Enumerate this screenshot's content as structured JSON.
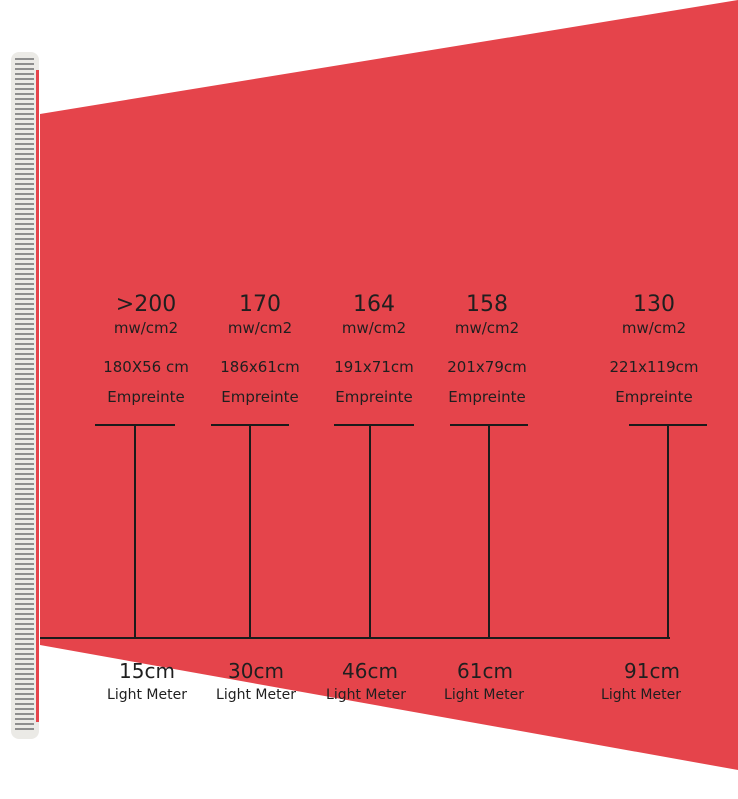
{
  "colors": {
    "beam": "#e5444b",
    "panel_body": "#ebeae6",
    "panel_led": "#8e8e8e",
    "panel_strip": "#e5444b",
    "lines": "#1b1b1b",
    "text": "#1f1f1f"
  },
  "panel": {
    "icon": "led-light-panel-icon"
  },
  "measurements": [
    {
      "power": ">200",
      "unit": "mw/cm2",
      "footprint_size": "180X56 cm",
      "footprint_label": "Empreinte",
      "distance": "15cm",
      "meter_label": "Light Meter"
    },
    {
      "power": "170",
      "unit": "mw/cm2",
      "footprint_size": "186x61cm",
      "footprint_label": "Empreinte",
      "distance": "30cm",
      "meter_label": "Light Meter"
    },
    {
      "power": "164",
      "unit": "mw/cm2",
      "footprint_size": "191x71cm",
      "footprint_label": "Empreinte",
      "distance": "46cm",
      "meter_label": "Light Meter"
    },
    {
      "power": "158",
      "unit": "mw/cm2",
      "footprint_size": "201x79cm",
      "footprint_label": "Empreinte",
      "distance": "61cm",
      "meter_label": "Light Meter"
    },
    {
      "power": "130",
      "unit": "mw/cm2",
      "footprint_size": "221x119cm",
      "footprint_label": "Empreinte",
      "distance": "91cm",
      "meter_label": "Light Meter"
    }
  ]
}
